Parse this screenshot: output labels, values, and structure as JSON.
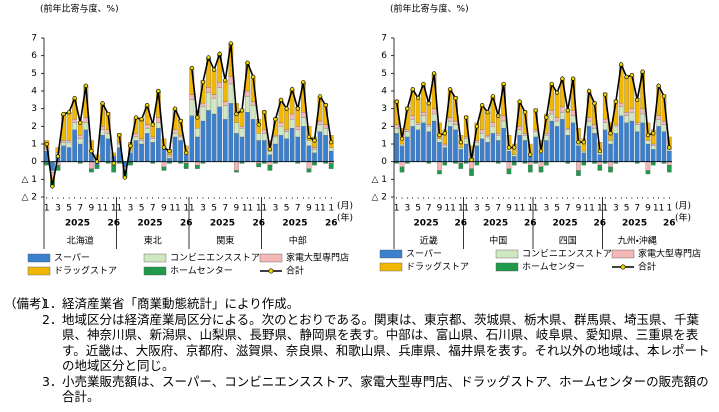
{
  "chart_data": [
    {
      "type": "bar",
      "stacked": true,
      "ylabel": "(前年比寄与度、%)",
      "month_unit": "(月)",
      "year_unit": "(年)",
      "ylim": [
        -2,
        7
      ],
      "yticks": [
        {
          "value": -2,
          "label": "△ 2"
        },
        {
          "value": -1,
          "label": "△ 1"
        },
        0,
        1,
        2,
        3,
        4,
        5,
        6,
        7
      ],
      "grid": false,
      "categories": [
        "1",
        null,
        "3",
        null,
        "5",
        null,
        "7",
        null,
        "9",
        null,
        "11",
        null,
        "1",
        "1",
        null,
        "3",
        null,
        "5",
        null,
        "7",
        null,
        "9",
        null,
        "11",
        null,
        "1",
        "1",
        null,
        "3",
        null,
        "5",
        null,
        "7",
        null,
        "9",
        null,
        "11",
        null,
        "1",
        "1",
        null,
        "3",
        null,
        "5",
        null,
        "7",
        null,
        "9",
        null,
        "11",
        null,
        "1"
      ],
      "groups": [
        {
          "name": "北海道",
          "years": [
            "2025",
            "26"
          ]
        },
        {
          "name": "東北",
          "years": [
            "2025",
            "26"
          ]
        },
        {
          "name": "関東",
          "years": [
            "2025",
            "26"
          ]
        },
        {
          "name": "中部",
          "years": [
            "2025",
            "26"
          ]
        }
      ],
      "series": [
        {
          "name": "スーパー",
          "color": "#3b7fcf",
          "values": [
            0.6,
            -0.5,
            0.4,
            0.9,
            0.8,
            1.8,
            1.0,
            1.8,
            0.5,
            -0.2,
            1.5,
            1.3,
            0.3,
            0.8,
            -0.3,
            0.5,
            1.2,
            1.0,
            1.6,
            1.1,
            1.9,
            0.7,
            0.2,
            1.4,
            1.2,
            0.4,
            2.6,
            1.4,
            2.3,
            2.9,
            2.7,
            3.1,
            2.4,
            3.3,
            1.6,
            1.4,
            2.8,
            2.4,
            1.2,
            1.2,
            0.4,
            1.0,
            1.5,
            1.3,
            1.9,
            1.4,
            2.0,
            0.9,
            0.5,
            1.7,
            1.5,
            0.6
          ]
        },
        {
          "name": "コンビニエンスストア",
          "color": "#cfe8c0",
          "values": [
            0.1,
            -0.1,
            0.1,
            0.2,
            0.3,
            0.4,
            0.3,
            0.4,
            0.1,
            0.0,
            0.3,
            0.3,
            0.0,
            0.2,
            0.0,
            0.1,
            0.2,
            0.2,
            0.3,
            0.2,
            0.3,
            0.1,
            0.1,
            0.2,
            0.2,
            0.1,
            0.9,
            0.5,
            0.8,
            1.0,
            0.9,
            1.1,
            0.8,
            1.1,
            0.6,
            0.5,
            0.9,
            0.8,
            0.4,
            0.4,
            0.2,
            0.4,
            0.5,
            0.4,
            0.5,
            0.4,
            0.5,
            0.3,
            0.2,
            0.4,
            0.4,
            0.2
          ]
        },
        {
          "name": "家電大型専門店",
          "color": "#f2b8b8",
          "values": [
            0.1,
            -0.3,
            -0.2,
            0.1,
            0.1,
            0.2,
            0.2,
            0.3,
            -0.4,
            0.1,
            0.2,
            0.2,
            -0.2,
            0.1,
            -0.2,
            0.1,
            0.2,
            0.1,
            0.2,
            0.1,
            0.3,
            -0.3,
            0.1,
            0.2,
            0.1,
            -0.1,
            0.3,
            -0.2,
            0.2,
            0.3,
            0.2,
            0.3,
            0.2,
            0.4,
            -0.5,
            0.1,
            0.3,
            0.2,
            -0.1,
            0.2,
            -0.2,
            0.1,
            0.2,
            0.1,
            0.3,
            0.2,
            0.3,
            -0.4,
            0.1,
            0.2,
            0.2,
            -0.1
          ]
        },
        {
          "name": "ドラッグストア",
          "color": "#f2b705",
          "values": [
            0.4,
            -0.2,
            0.3,
            1.4,
            1.5,
            1.2,
            0.8,
            1.7,
            0.6,
            0.3,
            1.3,
            1.0,
            0.2,
            0.5,
            0.0,
            0.4,
            0.9,
            1.0,
            1.1,
            0.8,
            1.4,
            0.5,
            0.3,
            1.2,
            0.9,
            0.4,
            1.5,
            1.0,
            1.3,
            1.6,
            1.4,
            1.5,
            1.2,
            1.8,
            1.1,
            1.0,
            1.6,
            1.4,
            0.8,
            1.1,
            0.6,
            1.0,
            1.3,
            1.2,
            1.4,
            1.1,
            1.6,
            0.8,
            0.6,
            1.4,
            1.2,
            0.7
          ]
        },
        {
          "name": "ホームセンター",
          "color": "#1f9a4a",
          "values": [
            -0.2,
            -0.3,
            -0.3,
            0.1,
            0.1,
            0.0,
            -0.1,
            0.1,
            -0.2,
            -0.2,
            0.0,
            -0.1,
            -0.4,
            -0.1,
            -0.4,
            -0.2,
            0.0,
            0.1,
            0.0,
            -0.1,
            0.1,
            -0.2,
            -0.1,
            0.0,
            -0.1,
            -0.3,
            0.0,
            -0.2,
            -0.1,
            0.1,
            0.0,
            0.1,
            0.0,
            0.1,
            -0.1,
            -0.1,
            0.0,
            0.0,
            -0.2,
            -0.1,
            -0.3,
            -0.1,
            0.0,
            0.0,
            0.0,
            -0.1,
            0.1,
            -0.2,
            -0.2,
            0.0,
            -0.1,
            -0.3
          ]
        },
        {
          "name": "合計",
          "type": "line",
          "color": "#000000",
          "marker_color": "#f5d800",
          "values": [
            1.0,
            -1.4,
            0.3,
            2.7,
            2.8,
            3.6,
            2.2,
            4.3,
            0.6,
            0.0,
            3.3,
            2.7,
            -0.1,
            1.5,
            -0.9,
            0.9,
            2.5,
            2.4,
            3.2,
            2.1,
            4.0,
            0.8,
            0.6,
            3.0,
            2.3,
            0.5,
            5.3,
            2.5,
            4.5,
            5.9,
            5.2,
            6.1,
            4.6,
            6.7,
            2.7,
            2.9,
            5.6,
            4.8,
            2.1,
            2.8,
            0.7,
            2.4,
            3.5,
            3.0,
            4.1,
            3.0,
            4.5,
            1.4,
            1.2,
            3.7,
            3.2,
            1.1
          ]
        }
      ]
    },
    {
      "type": "bar",
      "stacked": true,
      "ylabel": "(前年比寄与度、%)",
      "month_unit": "(月)",
      "year_unit": "(年)",
      "ylim": [
        -2,
        7
      ],
      "yticks": [
        {
          "value": -2,
          "label": "△ 2"
        },
        {
          "value": -1,
          "label": "△ 1"
        },
        0,
        1,
        2,
        3,
        4,
        5,
        6,
        7
      ],
      "grid": false,
      "categories": [
        "1",
        null,
        "3",
        null,
        "5",
        null,
        "7",
        null,
        "9",
        null,
        "11",
        null,
        "1",
        "1",
        null,
        "3",
        null,
        "5",
        null,
        "7",
        null,
        "9",
        null,
        "11",
        null,
        "1",
        "1",
        null,
        "3",
        null,
        "5",
        null,
        "7",
        null,
        "9",
        null,
        "11",
        null,
        "1",
        "1",
        null,
        "3",
        null,
        "5",
        null,
        "7",
        null,
        "9",
        null,
        "11",
        null,
        "1"
      ],
      "groups": [
        {
          "name": "近畿",
          "years": [
            "2025",
            "26"
          ]
        },
        {
          "name": "中国",
          "years": [
            "2025",
            "26"
          ]
        },
        {
          "name": "四国",
          "years": [
            "2025",
            "26"
          ]
        },
        {
          "name": "九州・沖縄",
          "years": [
            "2025",
            "26"
          ]
        }
      ],
      "series": [
        {
          "name": "スーパー",
          "color": "#3b7fcf",
          "values": [
            1.6,
            0.9,
            1.4,
            2.0,
            1.8,
            2.2,
            1.7,
            2.3,
            1.1,
            0.8,
            2.0,
            1.8,
            0.7,
            1.0,
            0.2,
            0.9,
            1.3,
            1.1,
            1.6,
            1.2,
            1.9,
            0.6,
            0.3,
            1.5,
            1.2,
            0.3,
            1.4,
            0.5,
            1.2,
            2.3,
            2.0,
            2.4,
            1.5,
            2.2,
            0.9,
            0.5,
            2.0,
            1.6,
            0.4,
            1.8,
            1.0,
            1.6,
            2.6,
            2.2,
            2.3,
            1.7,
            2.2,
            1.0,
            0.7,
            2.0,
            1.7,
            0.6
          ]
        },
        {
          "name": "コンビニエンスストア",
          "color": "#cfe8c0",
          "values": [
            0.3,
            0.1,
            0.3,
            0.4,
            0.3,
            0.4,
            0.3,
            0.4,
            0.2,
            0.1,
            0.3,
            0.3,
            0.1,
            0.3,
            0.1,
            0.2,
            0.3,
            0.3,
            0.4,
            0.3,
            0.4,
            0.1,
            0.1,
            0.3,
            0.3,
            0.1,
            0.3,
            0.1,
            0.3,
            0.4,
            0.3,
            0.4,
            0.3,
            0.4,
            0.2,
            0.1,
            0.3,
            0.3,
            0.1,
            0.4,
            0.2,
            0.4,
            0.5,
            0.4,
            0.5,
            0.4,
            0.5,
            0.2,
            0.2,
            0.4,
            0.4,
            0.1
          ]
        },
        {
          "name": "家電大型専門店",
          "color": "#f2b8b8",
          "values": [
            0.2,
            -0.3,
            0.1,
            0.2,
            0.1,
            0.2,
            0.1,
            0.3,
            -0.5,
            0.1,
            0.2,
            0.2,
            -0.1,
            0.1,
            -0.4,
            0.1,
            0.2,
            0.1,
            0.2,
            0.1,
            0.3,
            -0.4,
            0.0,
            0.2,
            0.1,
            -0.2,
            0.1,
            -0.3,
            0.1,
            0.2,
            0.2,
            0.3,
            0.1,
            0.3,
            -0.5,
            0.0,
            0.2,
            0.2,
            -0.2,
            0.2,
            -0.3,
            0.1,
            0.2,
            0.2,
            0.2,
            0.1,
            0.3,
            -0.5,
            0.1,
            0.2,
            0.2,
            -0.2
          ]
        },
        {
          "name": "ドラッグストア",
          "color": "#f2b705",
          "values": [
            1.4,
            0.9,
            1.3,
            1.5,
            1.4,
            1.6,
            1.3,
            1.9,
            0.9,
            0.8,
            1.6,
            1.4,
            0.7,
            1.2,
            0.6,
            1.0,
            1.4,
            1.3,
            1.5,
            1.1,
            1.7,
            0.8,
            0.6,
            1.4,
            1.3,
            0.6,
            1.2,
            0.6,
            1.1,
            1.5,
            1.4,
            1.6,
            1.1,
            1.7,
            0.8,
            0.7,
            1.5,
            1.3,
            0.6,
            1.5,
            1.0,
            1.4,
            2.2,
            2.0,
            1.9,
            1.4,
            2.0,
            1.0,
            0.8,
            1.7,
            1.5,
            0.7
          ]
        },
        {
          "name": "ホームセンター",
          "color": "#1f9a4a",
          "values": [
            -0.1,
            -0.3,
            -0.1,
            0.0,
            0.0,
            0.0,
            -0.1,
            0.1,
            -0.2,
            -0.2,
            0.0,
            -0.1,
            -0.3,
            -0.1,
            -0.4,
            -0.2,
            0.0,
            0.0,
            0.0,
            -0.1,
            0.1,
            -0.3,
            -0.2,
            0.0,
            -0.1,
            -0.4,
            -0.1,
            -0.3,
            -0.2,
            0.0,
            0.0,
            0.0,
            -0.1,
            0.1,
            -0.3,
            -0.2,
            0.0,
            -0.1,
            -0.3,
            -0.1,
            -0.3,
            -0.1,
            0.0,
            0.0,
            0.0,
            -0.1,
            0.1,
            -0.2,
            -0.2,
            0.0,
            -0.1,
            -0.4
          ]
        },
        {
          "name": "合計",
          "type": "line",
          "color": "#000000",
          "marker_color": "#f5d800",
          "values": [
            3.4,
            1.3,
            3.0,
            4.1,
            3.6,
            4.4,
            3.3,
            5.0,
            1.5,
            1.6,
            4.1,
            3.6,
            1.1,
            2.5,
            0.1,
            2.0,
            3.2,
            2.8,
            3.7,
            2.6,
            4.4,
            0.8,
            0.8,
            3.4,
            2.8,
            0.4,
            2.9,
            0.6,
            2.5,
            4.4,
            3.9,
            4.7,
            2.9,
            4.7,
            1.1,
            1.1,
            4.0,
            3.3,
            0.6,
            3.8,
            1.6,
            3.4,
            5.5,
            4.8,
            4.9,
            3.5,
            5.1,
            1.5,
            1.6,
            4.3,
            3.7,
            0.8
          ]
        }
      ]
    }
  ],
  "notes": {
    "label": "（備考）",
    "items": [
      {
        "number": "1．",
        "text": "経済産業省「商業動態統計」により作成。"
      },
      {
        "number": "2．",
        "text": "地域区分は経済産業局区分による。次のとおりである。関東は、東京都、茨城県、栃木県、群馬県、埼玉県、千葉県、神奈川県、新潟県、山梨県、長野県、静岡県を表す。中部は、富山県、石川県、岐阜県、愛知県、三重県を表す。近畿は、大阪府、京都府、滋賀県、奈良県、和歌山県、兵庫県、福井県を表す。それ以外の地域は、本レポートの地域区分と同じ。"
      },
      {
        "number": "3．",
        "text": "小売業販売額は、スーパー、コンビニエンスストア、家電大型専門店、ドラッグストア、ホームセンターの販売額の合計。"
      }
    ]
  }
}
